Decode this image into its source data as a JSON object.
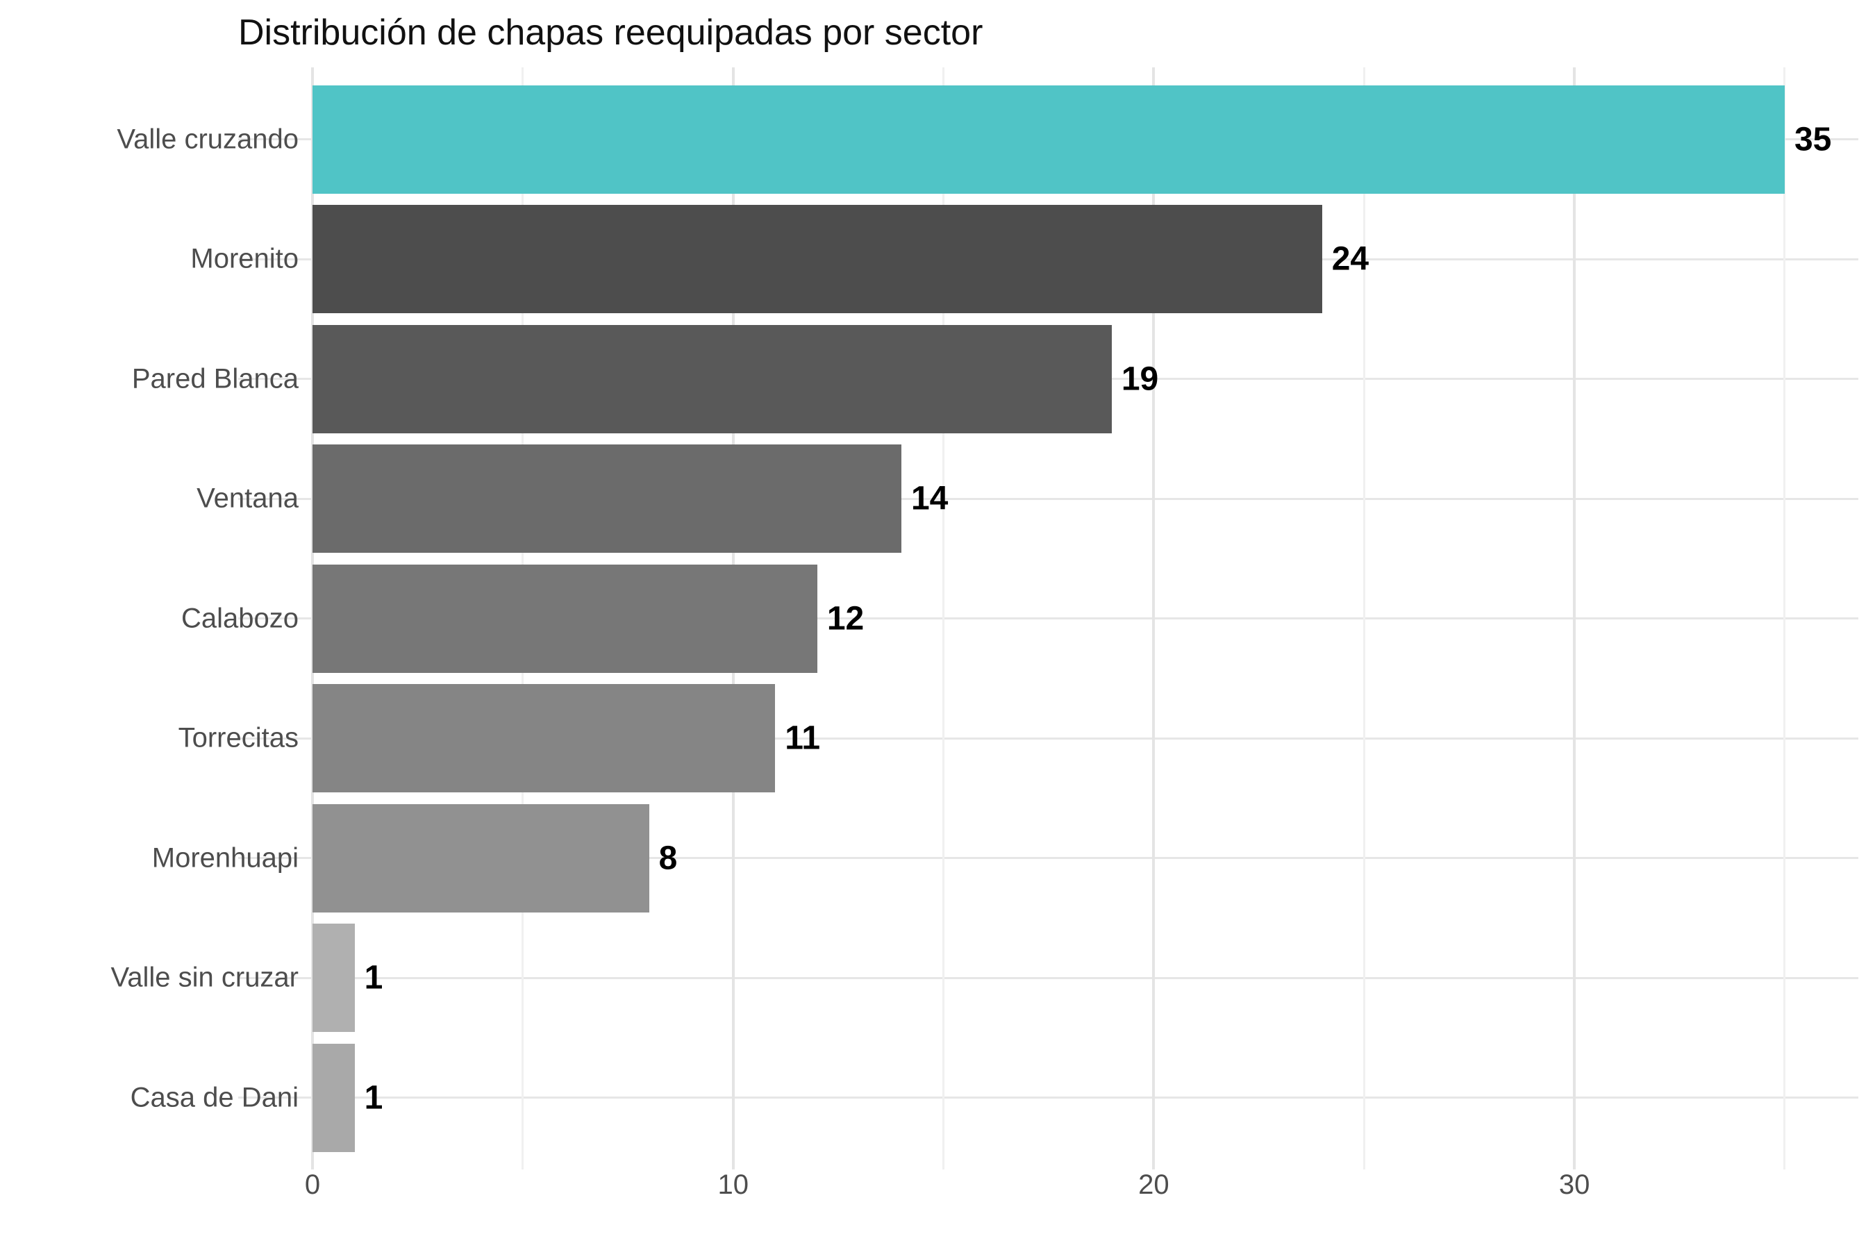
{
  "chart_data": {
    "type": "bar",
    "orientation": "horizontal",
    "title": "Distribución de chapas reequipadas por sector",
    "categories": [
      "Valle cruzando",
      "Morenito",
      "Pared Blanca",
      "Ventana",
      "Calabozo",
      "Torrecitas",
      "Morenhuapi",
      "Valle sin cruzar",
      "Casa de Dani"
    ],
    "values": [
      35,
      24,
      19,
      14,
      12,
      11,
      8,
      1,
      1
    ],
    "value_labels": [
      "35",
      "24",
      "19",
      "14",
      "12",
      "11",
      "8",
      "1",
      "1"
    ],
    "bar_colors": [
      "#50c4c6",
      "#4d4d4d",
      "#595959",
      "#6b6b6b",
      "#777777",
      "#858585",
      "#919191",
      "#b0b0b0",
      "#a9a9a9"
    ],
    "x_ticks": [
      0,
      10,
      20,
      30
    ],
    "x_minor_ticks": [
      5,
      15,
      25,
      35
    ],
    "xlim": [
      0,
      36.75
    ],
    "xlabel": "",
    "ylabel": "",
    "grid": "on",
    "legend": "none",
    "accent_color": "#50c4c6",
    "axis_text_color": "#4d4d4d",
    "grid_major_color": "#e4e4e4",
    "grid_minor_color": "#f0f0f0"
  }
}
